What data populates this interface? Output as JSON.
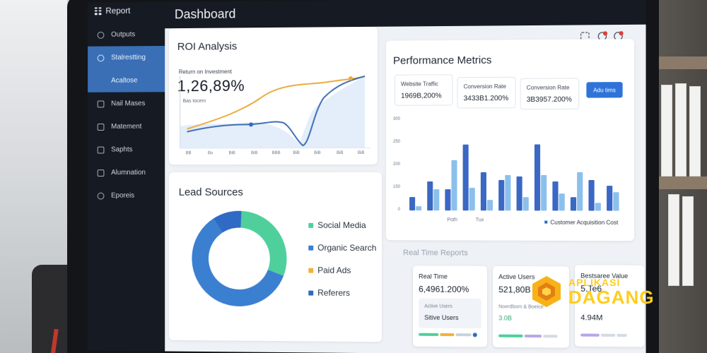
{
  "app": {
    "brand": "Report",
    "title": "Dashboard"
  },
  "sidebar": {
    "items": [
      {
        "label": "Outputs",
        "icon": "clock-icon",
        "active": false
      },
      {
        "label": "Stalrestting",
        "icon": "chart-icon",
        "active": true
      },
      {
        "label": "Acaltose",
        "icon": "layers-icon",
        "active": true
      },
      {
        "label": "Nail Mases",
        "icon": "folder-icon",
        "active": false
      },
      {
        "label": "Matement",
        "icon": "list-icon",
        "active": false
      },
      {
        "label": "Saphts",
        "icon": "chat-icon",
        "active": false
      },
      {
        "label": "Alumnation",
        "icon": "file-icon",
        "active": false
      },
      {
        "label": "Eporeis",
        "icon": "gear-icon",
        "active": false
      }
    ]
  },
  "header_icons": [
    "filter-icon",
    "bell-icon",
    "user-icon"
  ],
  "roi": {
    "title": "ROI Analysis",
    "label": "Return on Investment",
    "value": "1,26,89%",
    "sub": "Bas tocem",
    "xticks": [
      "BB",
      "Bu",
      "BiB",
      "BiB",
      "BBB",
      "BiB",
      "BiB",
      "BiB",
      "BiB"
    ]
  },
  "lead_sources": {
    "title": "Lead Sources",
    "legend": [
      {
        "name": "Social Media",
        "color": "#4fcf9c"
      },
      {
        "name": "Organic Search",
        "color": "#3b7fd0"
      },
      {
        "name": "Paid Ads",
        "color": "#f3b13a"
      },
      {
        "name": "Referers",
        "color": "#2f6ac4"
      }
    ]
  },
  "chart_data": [
    {
      "type": "pie",
      "title": "Lead Sources",
      "categories": [
        "Social Media",
        "Organic Search",
        "Paid Ads",
        "Referers"
      ],
      "values": [
        30,
        60,
        0,
        10
      ],
      "colors": [
        "#4fcf9c",
        "#3b7fd0",
        "#f3b13a",
        "#2f6ac4"
      ],
      "donut": true
    },
    {
      "type": "bar",
      "title": "",
      "xlabel": "Customer Acquisition Cost",
      "ylabel": "",
      "yticks": [
        "300",
        "250",
        "200",
        "150",
        "0"
      ],
      "xticks": [
        "Poth",
        "Tux"
      ],
      "series": [
        {
          "values": [
            45,
            95,
            70,
            215,
            125,
            100,
            110,
            215,
            95,
            45,
            100,
            80
          ]
        },
        {
          "values": [
            15,
            70,
            165,
            75,
            35,
            115,
            45,
            115,
            55,
            125,
            25,
            60
          ]
        }
      ],
      "ylim": [
        0,
        300
      ]
    }
  ],
  "performance": {
    "title": "Performance Metrics",
    "metrics": [
      {
        "label": "Website Traffic",
        "value": "1969B,200%"
      },
      {
        "label": "Conversion Rate",
        "value": "3433B1.200%"
      },
      {
        "label": "Conversion Rate",
        "value": "3B3957.200%"
      }
    ],
    "button": "Adu tims"
  },
  "realtime": {
    "section": "Real Time Reports",
    "cards": [
      {
        "title": "Real Time",
        "value": "6,4961.200%",
        "sub": "Active Users",
        "sub2": "Sitive Users"
      },
      {
        "title": "Active Users",
        "value": "521,80B",
        "sub": "Noerdbom & Boeice",
        "sub2": "3.0B"
      },
      {
        "title": "Bestsaree Value",
        "value": "5.Te6",
        "sub": "",
        "sub2": "4.94M"
      }
    ]
  },
  "watermark": {
    "line1": "APLIKASI",
    "line2": "DAGANG"
  }
}
